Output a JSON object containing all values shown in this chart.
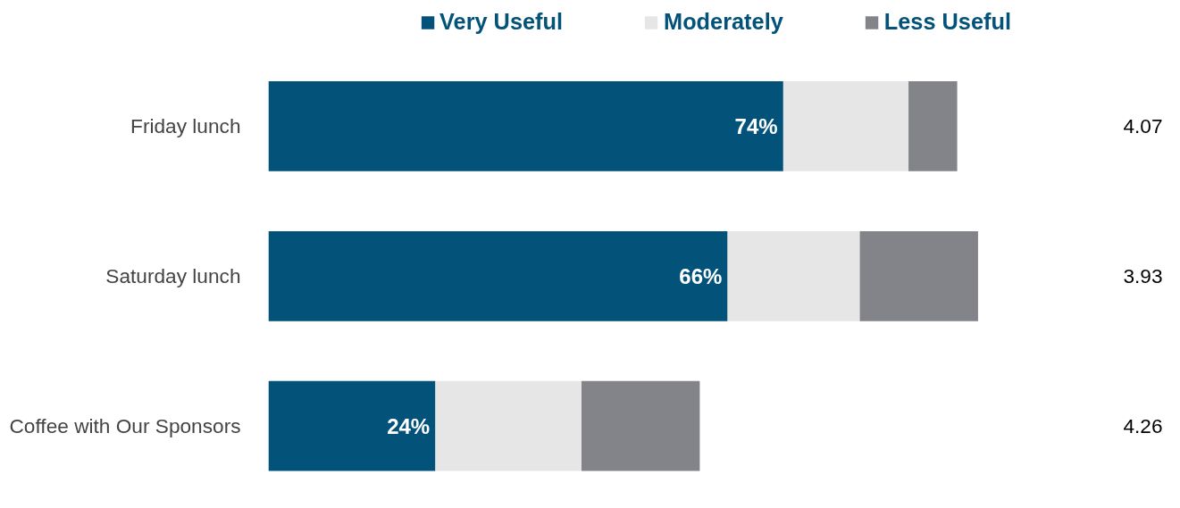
{
  "chart_data": {
    "type": "bar",
    "orientation": "horizontal",
    "stacked": true,
    "categories": [
      "Friday lunch",
      "Saturday lunch",
      "Coffee with Our Sponsors"
    ],
    "series": [
      {
        "name": "Very Useful",
        "color": "#02527a",
        "values": [
          74,
          66,
          24
        ],
        "value_labels": [
          "74%",
          "66%",
          "24%"
        ]
      },
      {
        "name": "Moderately",
        "color": "#e6e6e6",
        "values": [
          18,
          19,
          21
        ]
      },
      {
        "name": "Less Useful",
        "color": "#838489",
        "values": [
          7,
          17,
          17
        ]
      }
    ],
    "annotations": [
      "4.07",
      "3.93",
      "4.26"
    ],
    "legend": "top",
    "grid": false
  }
}
